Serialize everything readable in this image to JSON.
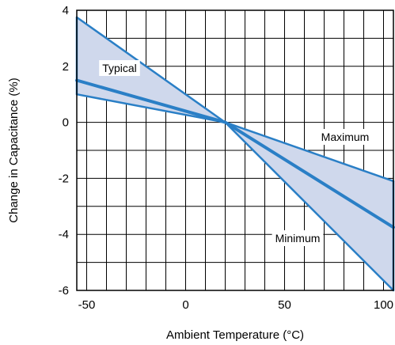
{
  "chart_data": {
    "type": "line",
    "title": "",
    "xlabel": "Ambient Temperature (°C)",
    "ylabel": "Change in Capacitance (%)",
    "xlim": [
      -55,
      105
    ],
    "ylim": [
      -6,
      4
    ],
    "x_ticks": [
      -50,
      0,
      50,
      100
    ],
    "y_ticks": [
      -6,
      -4,
      -2,
      0,
      2,
      4
    ],
    "grid": true,
    "series": [
      {
        "name": "Typical",
        "x": [
          -55,
          20,
          105
        ],
        "y": [
          1.5,
          0,
          -3.75
        ]
      },
      {
        "name": "Maximum",
        "x": [
          -55,
          20,
          105
        ],
        "y": [
          3.75,
          0,
          -2.1
        ]
      },
      {
        "name": "Minimum",
        "x": [
          -55,
          20,
          105
        ],
        "y": [
          1.0,
          0,
          -6.0
        ]
      }
    ],
    "shaded_region": "between Maximum and Minimum",
    "colors": {
      "line": "#2a7fc6",
      "fill": "#cfd8ec",
      "grid": "#000000"
    }
  }
}
